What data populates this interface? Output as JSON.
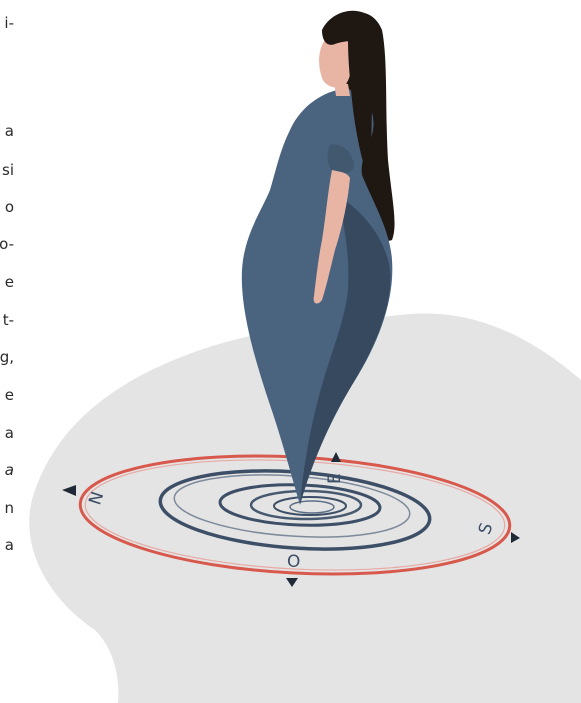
{
  "text_fragments": [
    "i-",
    "a",
    "si",
    "o",
    "o-",
    "e",
    "t-",
    "g,",
    "e",
    "a",
    "a",
    "n",
    "a"
  ],
  "compass": {
    "north": "N",
    "south": "S",
    "east": "E",
    "west": "O"
  },
  "colors": {
    "dress": "#4a6480",
    "dress_shadow": "#36495f",
    "hair": "#1f1712",
    "skin": "#e8b5a5",
    "ground": "#e4e4e4",
    "ring_outer": "#d8584c",
    "ring_inner": "#3d4f66"
  }
}
